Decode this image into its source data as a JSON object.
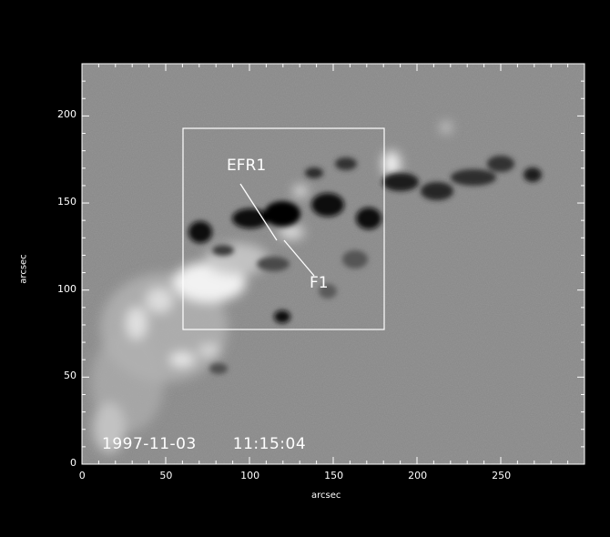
{
  "image": {
    "xlabel": "arcsec",
    "ylabel": "arcsec",
    "x_range": [
      0,
      300
    ],
    "y_range": [
      0,
      230
    ],
    "x_ticks": [
      "0",
      "50",
      "100",
      "150",
      "200",
      "250"
    ],
    "y_ticks": [
      "0",
      "50",
      "100",
      "150",
      "200"
    ],
    "date": "1997-11-03",
    "time": "11:15:04",
    "box": {
      "x": [
        60,
        180
      ],
      "y": [
        80,
        200
      ]
    },
    "annotations": [
      {
        "label": "EFR1"
      },
      {
        "label": "F1"
      }
    ],
    "colors": {
      "background": "#000000",
      "field": "#8a8a8a",
      "frame": "#ffffff"
    }
  }
}
